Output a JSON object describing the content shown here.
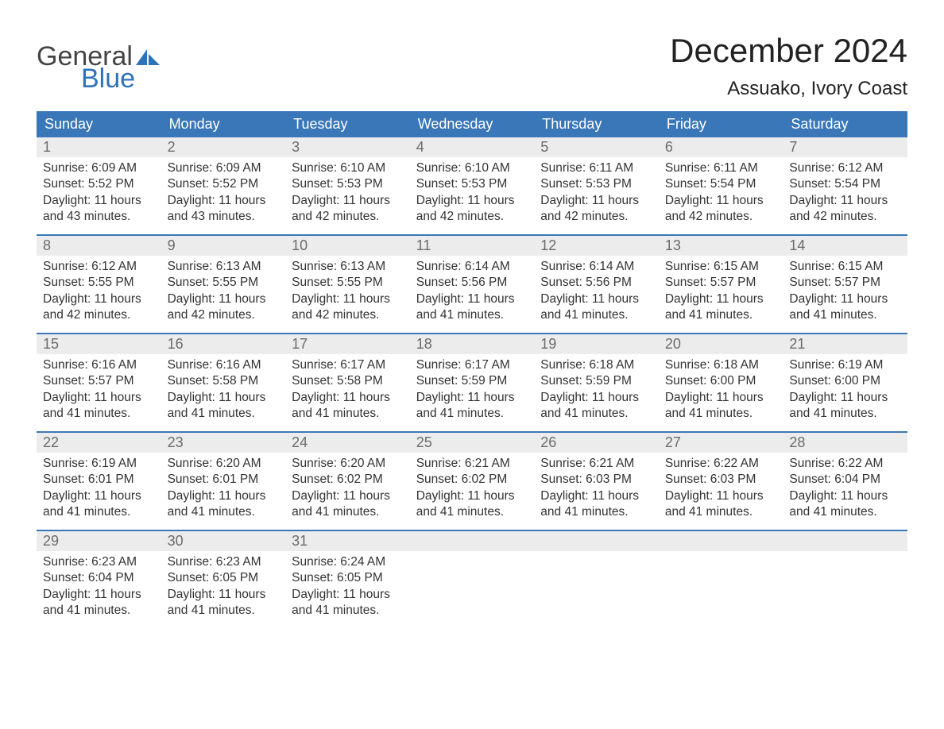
{
  "brand": {
    "text_general": "General",
    "text_blue": "Blue",
    "sail_color": "#2f72b8",
    "text_general_color": "#444444"
  },
  "header": {
    "month_title": "December 2024",
    "location": "Assuako, Ivory Coast"
  },
  "colors": {
    "header_bar_bg": "#3a77b9",
    "header_bar_text": "#ffffff",
    "week_divider": "#3a77b9",
    "day_num_bg": "#ececec",
    "day_num_text": "#6b6b6b",
    "body_text": "#333333",
    "page_bg": "#ffffff"
  },
  "typography": {
    "month_title_fontsize": 42,
    "location_fontsize": 24,
    "dow_fontsize": 18,
    "daynum_fontsize": 18,
    "body_fontsize": 15.5,
    "logo_fontsize": 34
  },
  "days_of_week": [
    "Sunday",
    "Monday",
    "Tuesday",
    "Wednesday",
    "Thursday",
    "Friday",
    "Saturday"
  ],
  "labels": {
    "sunrise": "Sunrise:",
    "sunset": "Sunset:",
    "daylight_prefix": "Daylight:",
    "hours_word": "hours",
    "and_word": "and",
    "minutes_word": "minutes."
  },
  "weeks": [
    [
      {
        "n": "1",
        "sr": "6:09 AM",
        "ss": "5:52 PM",
        "dh": "11",
        "dm": "43"
      },
      {
        "n": "2",
        "sr": "6:09 AM",
        "ss": "5:52 PM",
        "dh": "11",
        "dm": "43"
      },
      {
        "n": "3",
        "sr": "6:10 AM",
        "ss": "5:53 PM",
        "dh": "11",
        "dm": "42"
      },
      {
        "n": "4",
        "sr": "6:10 AM",
        "ss": "5:53 PM",
        "dh": "11",
        "dm": "42"
      },
      {
        "n": "5",
        "sr": "6:11 AM",
        "ss": "5:53 PM",
        "dh": "11",
        "dm": "42"
      },
      {
        "n": "6",
        "sr": "6:11 AM",
        "ss": "5:54 PM",
        "dh": "11",
        "dm": "42"
      },
      {
        "n": "7",
        "sr": "6:12 AM",
        "ss": "5:54 PM",
        "dh": "11",
        "dm": "42"
      }
    ],
    [
      {
        "n": "8",
        "sr": "6:12 AM",
        "ss": "5:55 PM",
        "dh": "11",
        "dm": "42"
      },
      {
        "n": "9",
        "sr": "6:13 AM",
        "ss": "5:55 PM",
        "dh": "11",
        "dm": "42"
      },
      {
        "n": "10",
        "sr": "6:13 AM",
        "ss": "5:55 PM",
        "dh": "11",
        "dm": "42"
      },
      {
        "n": "11",
        "sr": "6:14 AM",
        "ss": "5:56 PM",
        "dh": "11",
        "dm": "41"
      },
      {
        "n": "12",
        "sr": "6:14 AM",
        "ss": "5:56 PM",
        "dh": "11",
        "dm": "41"
      },
      {
        "n": "13",
        "sr": "6:15 AM",
        "ss": "5:57 PM",
        "dh": "11",
        "dm": "41"
      },
      {
        "n": "14",
        "sr": "6:15 AM",
        "ss": "5:57 PM",
        "dh": "11",
        "dm": "41"
      }
    ],
    [
      {
        "n": "15",
        "sr": "6:16 AM",
        "ss": "5:57 PM",
        "dh": "11",
        "dm": "41"
      },
      {
        "n": "16",
        "sr": "6:16 AM",
        "ss": "5:58 PM",
        "dh": "11",
        "dm": "41"
      },
      {
        "n": "17",
        "sr": "6:17 AM",
        "ss": "5:58 PM",
        "dh": "11",
        "dm": "41"
      },
      {
        "n": "18",
        "sr": "6:17 AM",
        "ss": "5:59 PM",
        "dh": "11",
        "dm": "41"
      },
      {
        "n": "19",
        "sr": "6:18 AM",
        "ss": "5:59 PM",
        "dh": "11",
        "dm": "41"
      },
      {
        "n": "20",
        "sr": "6:18 AM",
        "ss": "6:00 PM",
        "dh": "11",
        "dm": "41"
      },
      {
        "n": "21",
        "sr": "6:19 AM",
        "ss": "6:00 PM",
        "dh": "11",
        "dm": "41"
      }
    ],
    [
      {
        "n": "22",
        "sr": "6:19 AM",
        "ss": "6:01 PM",
        "dh": "11",
        "dm": "41"
      },
      {
        "n": "23",
        "sr": "6:20 AM",
        "ss": "6:01 PM",
        "dh": "11",
        "dm": "41"
      },
      {
        "n": "24",
        "sr": "6:20 AM",
        "ss": "6:02 PM",
        "dh": "11",
        "dm": "41"
      },
      {
        "n": "25",
        "sr": "6:21 AM",
        "ss": "6:02 PM",
        "dh": "11",
        "dm": "41"
      },
      {
        "n": "26",
        "sr": "6:21 AM",
        "ss": "6:03 PM",
        "dh": "11",
        "dm": "41"
      },
      {
        "n": "27",
        "sr": "6:22 AM",
        "ss": "6:03 PM",
        "dh": "11",
        "dm": "41"
      },
      {
        "n": "28",
        "sr": "6:22 AM",
        "ss": "6:04 PM",
        "dh": "11",
        "dm": "41"
      }
    ],
    [
      {
        "n": "29",
        "sr": "6:23 AM",
        "ss": "6:04 PM",
        "dh": "11",
        "dm": "41"
      },
      {
        "n": "30",
        "sr": "6:23 AM",
        "ss": "6:05 PM",
        "dh": "11",
        "dm": "41"
      },
      {
        "n": "31",
        "sr": "6:24 AM",
        "ss": "6:05 PM",
        "dh": "11",
        "dm": "41"
      },
      null,
      null,
      null,
      null
    ]
  ]
}
